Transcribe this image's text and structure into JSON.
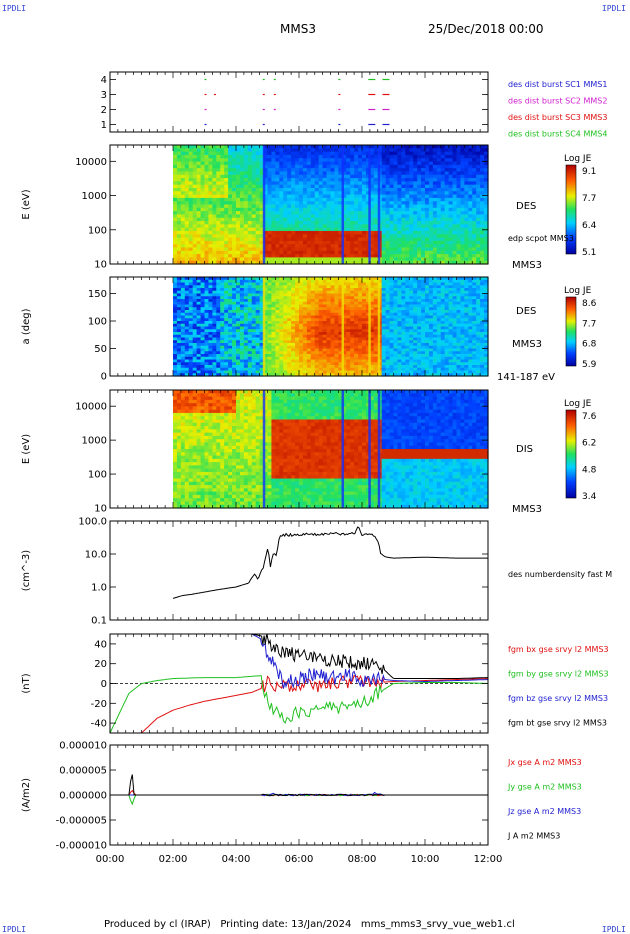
{
  "header": {
    "corner_tl": "IPDLI",
    "corner_tr": "IPDLI",
    "corner_bl": "IPDLI",
    "corner_br": "IPDLI",
    "title": "MMS3",
    "datetime": "25/Dec/2018 00:00"
  },
  "footer": {
    "text": "Produced by cl (IRAP)   Printing date: 13/Jan/2024   mms_mms3_srvy_vue_web1.cl"
  },
  "colors": {
    "mms1": "#2020d0",
    "mms2": "#d020d0",
    "mms3": "#e01010",
    "mms4": "#20c020",
    "black": "#000000"
  },
  "chart_data": [
    {
      "type": "scatter",
      "panel": "burst-availability",
      "ylim": [
        0.5,
        4.5
      ],
      "yticks": [
        "1",
        "2",
        "3",
        "4"
      ],
      "legend": [
        {
          "label": "des dist burst SC1 MMS1",
          "color": "#2020d0"
        },
        {
          "label": "des dist burst SC2 MMS2",
          "color": "#d020d0"
        },
        {
          "label": "des dist burst SC3 MMS3",
          "color": "#e01010"
        },
        {
          "label": "des dist burst SC4 MMS4",
          "color": "#20c020"
        }
      ],
      "series": [
        {
          "name": "des dist burst SC1 MMS1",
          "y": 1,
          "x": [
            3.0,
            4.85,
            7.25,
            8.2,
            8.65
          ]
        },
        {
          "name": "des dist burst SC2 MMS2",
          "y": 2,
          "x": [
            3.0,
            4.85,
            5.2,
            7.25,
            8.2,
            8.65
          ]
        },
        {
          "name": "des dist burst SC3 MMS3",
          "y": 3,
          "x": [
            3.0,
            3.3,
            4.85,
            5.2,
            7.25,
            8.2,
            8.65
          ]
        },
        {
          "name": "des dist burst SC4 MMS4",
          "y": 4,
          "x": [
            3.0,
            4.85,
            5.2,
            7.25,
            8.2,
            8.65
          ]
        }
      ]
    },
    {
      "type": "heatmap",
      "panel": "des-energy-spectrogram",
      "ylabel": "E (eV)",
      "yscale": "log",
      "ylim": [
        10,
        30000
      ],
      "yticks": [
        "10",
        "100",
        "1000",
        "10000"
      ],
      "right_labels": [
        "DES",
        "edp scpot MMS3",
        "MMS3"
      ],
      "colorbar": {
        "title": "Log JE",
        "ticks": [
          "9.1",
          "7.7",
          "6.4",
          "5.1"
        ]
      }
    },
    {
      "type": "heatmap",
      "panel": "des-pitch-angle",
      "ylabel": "a (deg)",
      "ylim": [
        0,
        180
      ],
      "yticks": [
        "0",
        "50",
        "100",
        "150"
      ],
      "right_labels": [
        "DES",
        "MMS3",
        "141-187 eV"
      ],
      "colorbar": {
        "title": "Log JE",
        "ticks": [
          "8.6",
          "7.7",
          "6.8",
          "5.9"
        ]
      }
    },
    {
      "type": "heatmap",
      "panel": "dis-energy-spectrogram",
      "ylabel": "E (eV)",
      "yscale": "log",
      "ylim": [
        10,
        30000
      ],
      "yticks": [
        "10",
        "100",
        "1000",
        "10000"
      ],
      "right_labels": [
        "DIS",
        "MMS3"
      ],
      "colorbar": {
        "title": "Log JE",
        "ticks": [
          "7.6",
          "6.2",
          "4.8",
          "3.4"
        ]
      }
    },
    {
      "type": "line",
      "panel": "density",
      "ylabel": "(cm^-3)",
      "yscale": "log",
      "ylim": [
        0.1,
        100
      ],
      "yticks": [
        "0.1",
        "1.0",
        "10.0",
        "100.0"
      ],
      "series": [
        {
          "name": "des numberdensity fast M",
          "color": "#000000",
          "x": [
            2.0,
            2.3,
            2.6,
            3.0,
            3.5,
            4.0,
            4.4,
            4.6,
            4.7,
            4.8,
            4.9,
            5.0,
            5.1,
            5.2,
            5.3,
            5.4,
            5.6,
            6.0,
            6.5,
            7.0,
            7.5,
            7.8,
            7.9,
            8.0,
            8.2,
            8.4,
            8.6,
            8.8,
            9.0,
            10.0,
            11.0,
            12.0
          ],
          "y": [
            0.45,
            0.55,
            0.6,
            0.7,
            0.85,
            1.0,
            1.3,
            2.5,
            1.6,
            3.0,
            4.5,
            14.0,
            3.0,
            12.0,
            8.0,
            35.0,
            38.0,
            39.0,
            38.0,
            40.0,
            42.0,
            45.0,
            70.0,
            35.0,
            40.0,
            38.0,
            9.0,
            8.0,
            7.5,
            8.0,
            7.5,
            7.5
          ]
        }
      ]
    },
    {
      "type": "line",
      "panel": "magnetic-field",
      "ylabel": "(nT)",
      "ylim": [
        -50,
        50
      ],
      "yticks": [
        "-40",
        "-20",
        "0",
        "20",
        "40"
      ],
      "series": [
        {
          "name": "fgm bx gse srvy l2 MMS3",
          "color": "#e01010",
          "x": [
            1.0,
            1.5,
            2.0,
            2.5,
            3.0,
            3.5,
            4.0,
            4.5,
            4.8,
            5.0,
            5.5,
            6.0,
            6.5,
            7.0,
            7.5,
            8.0,
            8.5,
            9.0,
            10.0,
            11.0,
            12.0
          ],
          "y": [
            -50,
            -35,
            -27,
            -22,
            -18,
            -15,
            -12,
            -9,
            -5,
            0,
            -2,
            0,
            -2,
            0,
            2,
            3,
            1,
            2,
            3,
            4,
            5
          ]
        },
        {
          "name": "fgm by gse srvy l2 MMS3",
          "color": "#20c020",
          "x": [
            0.0,
            0.3,
            0.6,
            1.0,
            1.5,
            2.0,
            3.0,
            4.0,
            4.8,
            5.0,
            5.5,
            6.0,
            7.0,
            8.0,
            8.5,
            9.0,
            10.0,
            11.0,
            12.0
          ],
          "y": [
            -50,
            -30,
            -10,
            0,
            3,
            5,
            6,
            6,
            8,
            -20,
            -35,
            -30,
            -25,
            -20,
            -10,
            0,
            1,
            1,
            0
          ]
        },
        {
          "name": "fgm bz gse srvy l2 MMS3",
          "color": "#2020d0",
          "x": [
            3.5,
            4.0,
            4.5,
            4.8,
            5.0,
            5.5,
            6.0,
            6.5,
            7.0,
            7.5,
            8.0,
            8.5,
            9.0,
            10.0,
            11.0,
            12.0
          ],
          "y": [
            50,
            50,
            50,
            45,
            30,
            0,
            5,
            10,
            5,
            8,
            3,
            5,
            3,
            2,
            3,
            4
          ]
        },
        {
          "name": "fgm bt gse srvy l2 MMS3",
          "color": "#000000",
          "x": [
            3.5,
            4.0,
            4.5,
            4.8,
            5.0,
            5.5,
            6.0,
            6.5,
            7.0,
            7.5,
            8.0,
            8.5,
            9.0,
            10.0,
            11.0,
            12.0
          ],
          "y": [
            50,
            50,
            50,
            48,
            42,
            32,
            28,
            26,
            24,
            22,
            20,
            20,
            5,
            5,
            5,
            6
          ]
        }
      ]
    },
    {
      "type": "line",
      "panel": "current-density",
      "ylabel": "(A/m2)",
      "ylim": [
        -1e-05,
        1e-05
      ],
      "yticks": [
        "-0.000010",
        "-0.000005",
        "0.000000",
        "0.000005",
        "0.000010"
      ],
      "xlim": [
        0,
        12
      ],
      "xticks": [
        "00:00",
        "02:00",
        "04:00",
        "06:00",
        "08:00",
        "10:00",
        "12:00"
      ],
      "series": [
        {
          "name": "Jx gse A m2 MMS3",
          "color": "#e01010",
          "x": [
            0,
            0.6,
            0.7,
            0.8,
            5.0,
            8.0,
            12.0
          ],
          "y": [
            0,
            0,
            1e-06,
            0,
            0,
            0,
            0
          ]
        },
        {
          "name": "Jy gse A m2 MMS3",
          "color": "#20c020",
          "x": [
            0,
            0.6,
            0.7,
            0.8,
            12.0
          ],
          "y": [
            0,
            0,
            -2e-06,
            0,
            0
          ]
        },
        {
          "name": "Jz gse A m2 MMS3",
          "color": "#2020d0",
          "x": [
            0,
            5.0,
            5.2,
            5.4,
            8.2,
            8.4,
            8.6,
            12.0
          ],
          "y": [
            0,
            0,
            3e-07,
            0,
            0,
            4e-07,
            0,
            0
          ]
        },
        {
          "name": "J A m2 MMS3",
          "color": "#000000",
          "x": [
            0,
            0.6,
            0.7,
            0.75,
            0.8,
            12.0
          ],
          "y": [
            0,
            0,
            5e-06,
            0,
            0,
            0
          ]
        }
      ]
    }
  ]
}
